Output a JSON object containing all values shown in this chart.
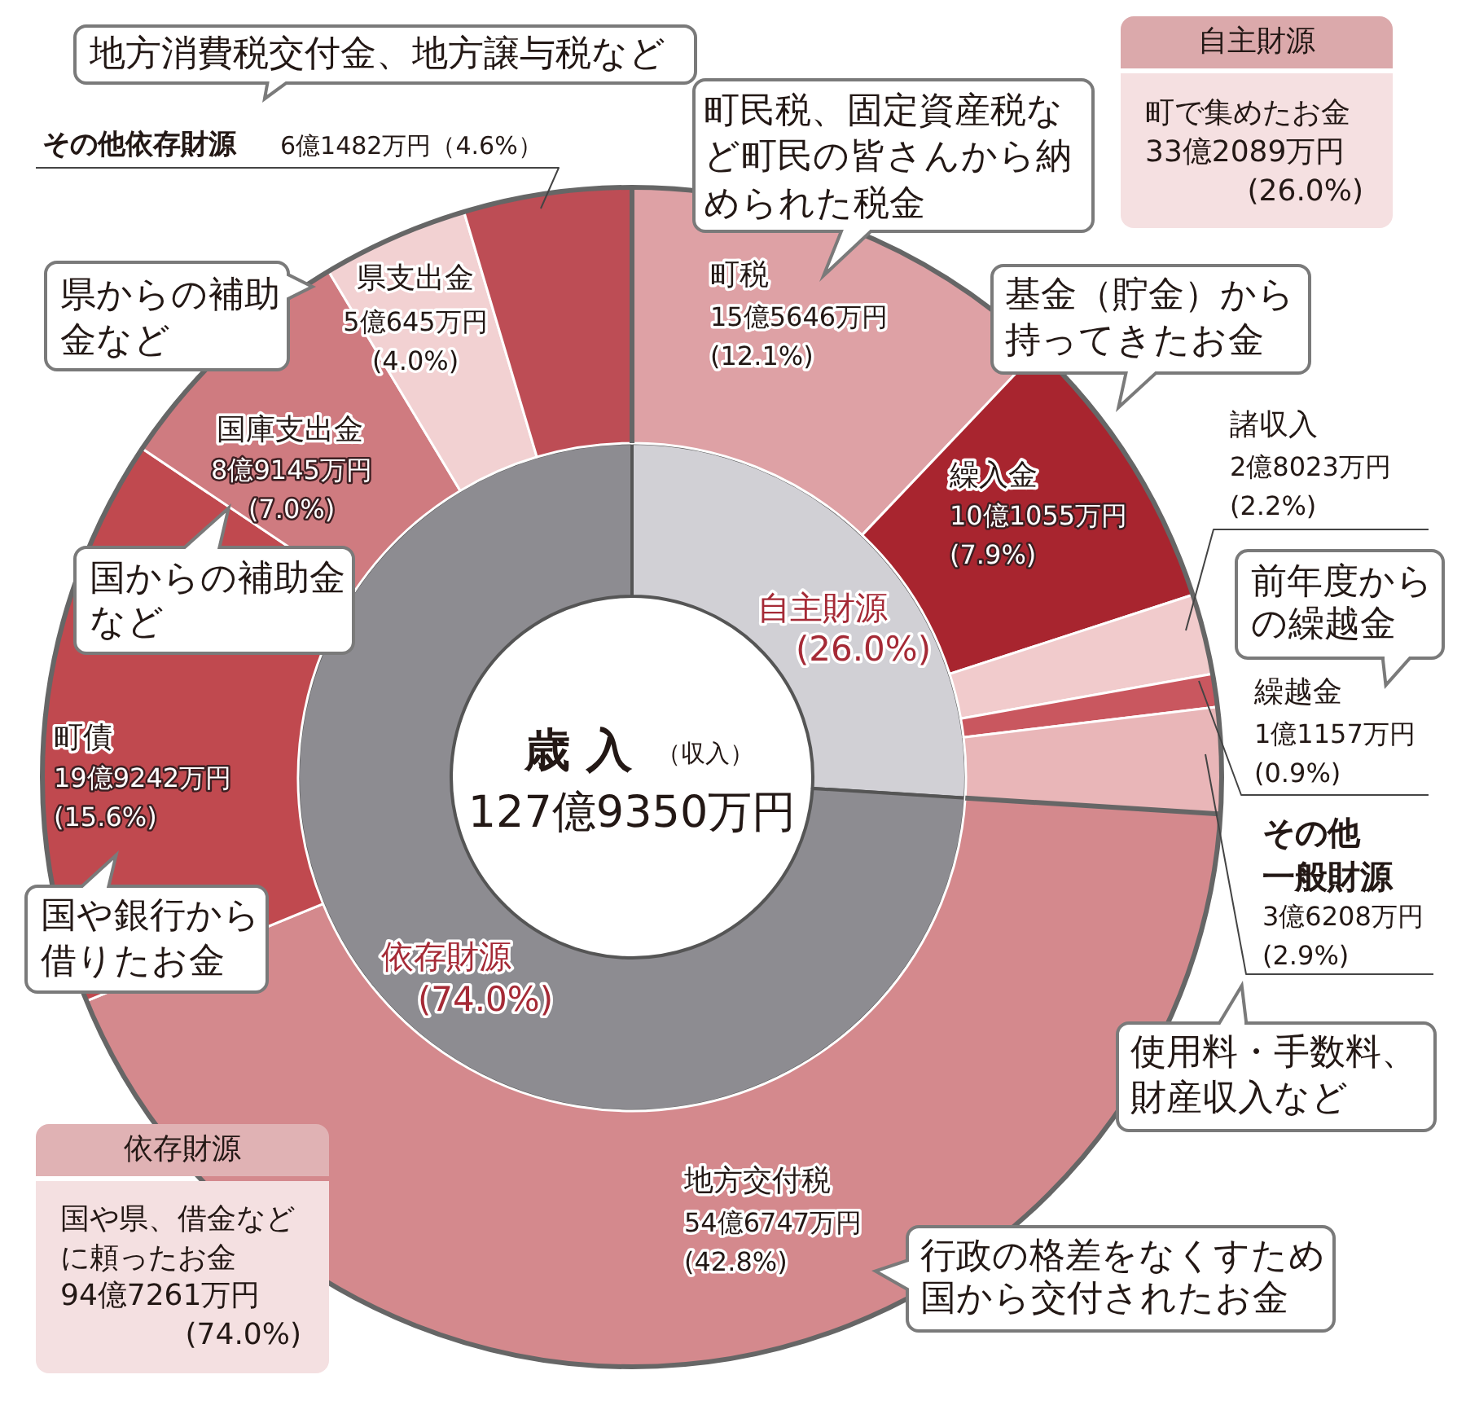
{
  "chart_data": [
    {
      "type": "donut",
      "categories": [
        "町税",
        "繰入金",
        "諸収入",
        "繰越金",
        "その他一般財源",
        "地方交付税",
        "町債",
        "国庫支出金",
        "県支出金",
        "その他依存財源"
      ],
      "values": [
        12.1,
        7.9,
        2.2,
        0.9,
        2.9,
        42.8,
        15.6,
        7.0,
        4.0,
        4.6
      ],
      "colors": [
        "#dea1a5",
        "#a8252f",
        "#f1cbcc",
        "#c9575f",
        "#e9b6b8",
        "#d4898d",
        "#c0494f",
        "#cf7b80",
        "#f2d1d2",
        "#bd4d55"
      ],
      "value_labels": [
        "15億5646万円\n(12.1%)",
        "10億1055万円\n(7.9%)",
        "2億8023万円\n(2.2%)",
        "1億1157万円\n(0.9%)",
        "3億6208万円\n(2.9%)",
        "54億6747万円\n(42.8%)",
        "19億9242万円\n(15.6%)",
        "8億9145万円\n(7.0%)",
        "5億645万円\n(4.0%)",
        "6億1482万円（4.6%）"
      ],
      "annotations": [
        "地方消費税交付金、地方譲与税など",
        "町民税、固定資産税など町民の皆さんから納められた税金",
        "基金（貯金）から持ってきたお金",
        "県からの補助金など",
        "国からの補助金など",
        "前年度からの繰越金",
        "国や銀行から借りたお金",
        "使用料・手数料、財産収入など",
        "行政の格差をなくすため国から交付されたお金"
      ]
    },
    {
      "type": "donut",
      "title": "歳 入",
      "subtitle": "（収入）",
      "categories": [
        "自主財源",
        "依存財源"
      ],
      "values": [
        26.0,
        74.0
      ],
      "colors": [
        "#d1d0d5",
        "#8d8c91"
      ],
      "value_labels": [
        "(26.0%)",
        "(74.0%)"
      ],
      "annotations": [
        "127億9350万円",
        "自主財源",
        "町で集めたお金",
        "33億2089万円",
        "(26.0%)",
        "依存財源",
        "国や県、借金などに頼ったお金",
        "94億7261万円",
        "(74.0%)"
      ]
    }
  ]
}
